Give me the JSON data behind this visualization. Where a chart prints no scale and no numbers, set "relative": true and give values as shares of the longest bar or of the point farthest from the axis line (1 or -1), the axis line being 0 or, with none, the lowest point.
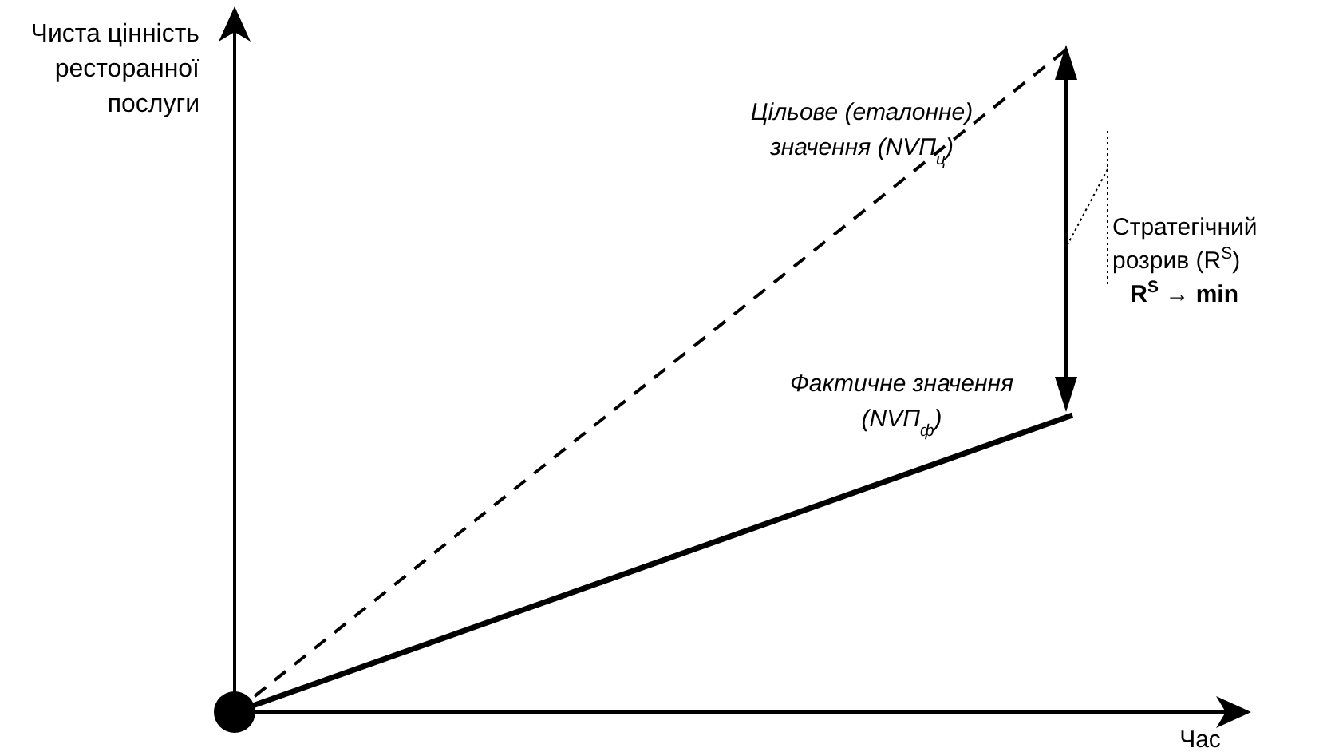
{
  "chart_data": {
    "type": "line",
    "relative": true,
    "ylabel": "Чиста цінність ресторанної послуги",
    "xlabel": "Час",
    "categories": [
      null,
      null
    ],
    "series": [
      {
        "name": "Цільове (еталонне) значення (NVП$_{ц}$)",
        "color": "#000000",
        "values": [
          0,
          1
        ],
        "line_style": "dashed"
      },
      {
        "name": "Фактичне значення (NVП$_{ф}$)",
        "color": "#000000",
        "values": [
          0,
          0.445
        ],
        "line_style": "solid"
      }
    ],
    "annotations": [
      "Стратегічний розрив (R$^{S}$)",
      "R$^{S}$ → min"
    ]
  }
}
